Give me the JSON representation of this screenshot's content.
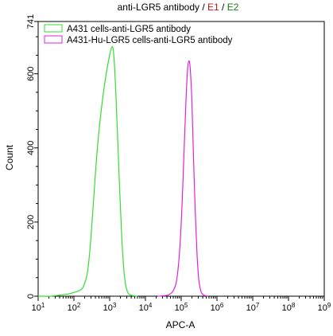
{
  "chart_data": {
    "type": "line",
    "title_parts": [
      {
        "text": "anti-LGR5 antibody",
        "color": "#000000"
      },
      {
        "text": " / ",
        "color": "#000000"
      },
      {
        "text": "E1",
        "color": "#d01010"
      },
      {
        "text": " / ",
        "color": "#000000"
      },
      {
        "text": "E2",
        "color": "#108010"
      }
    ],
    "xlabel": "APC-A",
    "ylabel": "Count",
    "x_scale": "log",
    "xlim": [
      10,
      1000000000
    ],
    "ylim": [
      0,
      741
    ],
    "x_ticks": [
      {
        "base": "10",
        "exp": "1"
      },
      {
        "base": "10",
        "exp": "2"
      },
      {
        "base": "10",
        "exp": "3"
      },
      {
        "base": "10",
        "exp": "4"
      },
      {
        "base": "10",
        "exp": "5"
      },
      {
        "base": "10",
        "exp": "6"
      },
      {
        "base": "10",
        "exp": "7"
      },
      {
        "base": "10",
        "exp": "8"
      },
      {
        "base": "10",
        "exp": "9"
      }
    ],
    "y_ticks": [
      "0",
      "200",
      "400",
      "600",
      "741"
    ],
    "grid": false,
    "legend_position": "top-left",
    "series": [
      {
        "name": "A431 cells-anti-LGR5 antibody",
        "color": "#33dd33",
        "points": [
          [
            10,
            0
          ],
          [
            22,
            0
          ],
          [
            40,
            3
          ],
          [
            70,
            6
          ],
          [
            100,
            10
          ],
          [
            140,
            15
          ],
          [
            175,
            22
          ],
          [
            205,
            38
          ],
          [
            235,
            60
          ],
          [
            265,
            100
          ],
          [
            300,
            160
          ],
          [
            350,
            250
          ],
          [
            420,
            360
          ],
          [
            520,
            460
          ],
          [
            650,
            540
          ],
          [
            800,
            600
          ],
          [
            950,
            640
          ],
          [
            1060,
            662
          ],
          [
            1150,
            672
          ],
          [
            1240,
            668
          ],
          [
            1350,
            630
          ],
          [
            1500,
            540
          ],
          [
            1680,
            420
          ],
          [
            1900,
            290
          ],
          [
            2150,
            170
          ],
          [
            2450,
            80
          ],
          [
            2800,
            30
          ],
          [
            3300,
            8
          ],
          [
            4200,
            2
          ],
          [
            6000,
            0
          ]
        ]
      },
      {
        "name": "A431-Hu-LGR5 cells-anti-LGR5 antibody",
        "color": "#e020e0",
        "points": [
          [
            22000,
            0
          ],
          [
            32000,
            1
          ],
          [
            45000,
            4
          ],
          [
            60000,
            15
          ],
          [
            75000,
            45
          ],
          [
            90000,
            120
          ],
          [
            105000,
            240
          ],
          [
            120000,
            390
          ],
          [
            135000,
            520
          ],
          [
            150000,
            610
          ],
          [
            165000,
            635
          ],
          [
            180000,
            610
          ],
          [
            200000,
            520
          ],
          [
            220000,
            380
          ],
          [
            245000,
            240
          ],
          [
            275000,
            120
          ],
          [
            310000,
            45
          ],
          [
            360000,
            12
          ],
          [
            430000,
            3
          ],
          [
            550000,
            0
          ]
        ]
      }
    ]
  }
}
